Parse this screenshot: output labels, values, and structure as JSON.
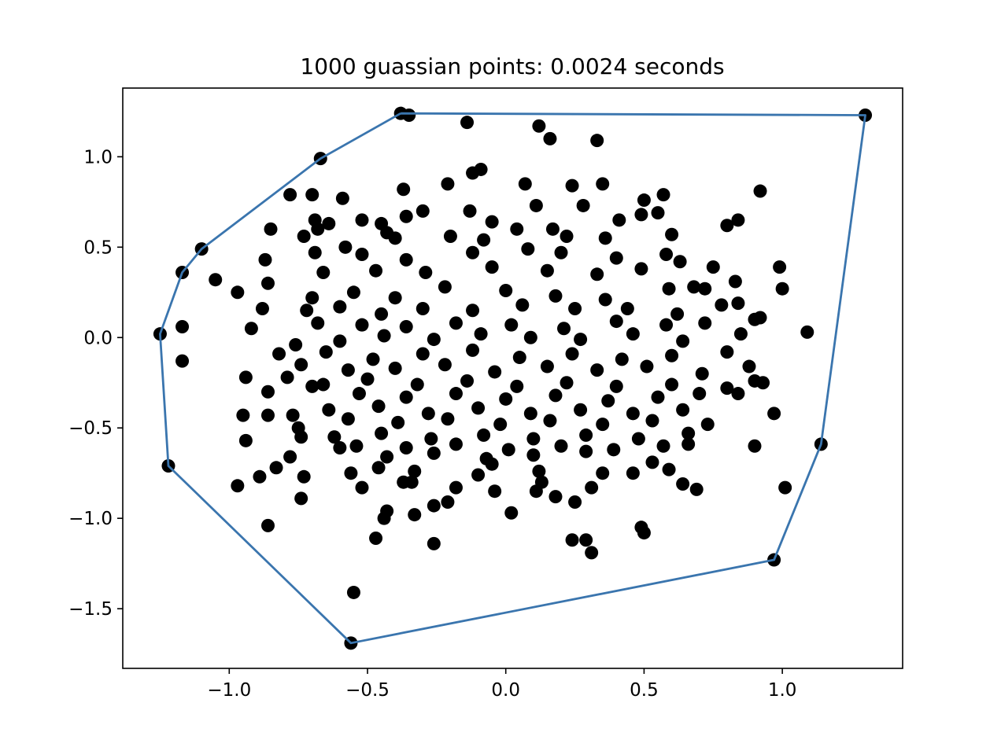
{
  "chart_data": {
    "type": "scatter",
    "title": "1000 guassian points: 0.0024 seconds",
    "xlabel": "",
    "ylabel": "",
    "xlim": [
      -1.385,
      1.435
    ],
    "ylim": [
      -1.83,
      1.38
    ],
    "xticks": [
      -1.0,
      -0.5,
      0.0,
      0.5,
      1.0
    ],
    "xtick_labels": [
      "−1.0",
      "−0.5",
      "0.0",
      "0.5",
      "1.0"
    ],
    "yticks": [
      -1.5,
      -1.0,
      -0.5,
      0.0,
      0.5,
      1.0
    ],
    "ytick_labels": [
      "−1.5",
      "−1.0",
      "−0.5",
      "0.0",
      "0.5",
      "1.0"
    ],
    "grid": false,
    "legend": "none",
    "point_color": "#000000",
    "hull_color": "#3a75ae",
    "points_total": 1000,
    "hull": [
      [
        -0.38,
        1.24
      ],
      [
        1.3,
        1.23
      ],
      [
        1.14,
        -0.59
      ],
      [
        0.97,
        -1.23
      ],
      [
        -0.56,
        -1.69
      ],
      [
        -1.22,
        -0.71
      ],
      [
        -1.25,
        0.02
      ],
      [
        -1.17,
        0.36
      ],
      [
        -1.1,
        0.49
      ],
      [
        -0.67,
        0.99
      ],
      [
        -0.38,
        1.24
      ]
    ],
    "points": [
      [
        -0.38,
        1.24
      ],
      [
        -0.35,
        1.23
      ],
      [
        -0.14,
        1.19
      ],
      [
        0.12,
        1.17
      ],
      [
        0.16,
        1.1
      ],
      [
        0.33,
        1.09
      ],
      [
        1.3,
        1.23
      ],
      [
        -0.67,
        0.99
      ],
      [
        -0.12,
        0.91
      ],
      [
        -0.09,
        0.93
      ],
      [
        0.92,
        0.81
      ],
      [
        -0.37,
        0.82
      ],
      [
        -0.21,
        0.85
      ],
      [
        0.35,
        0.85
      ],
      [
        0.24,
        0.84
      ],
      [
        0.07,
        0.85
      ],
      [
        -0.78,
        0.79
      ],
      [
        -0.7,
        0.79
      ],
      [
        -0.59,
        0.77
      ],
      [
        0.5,
        0.76
      ],
      [
        0.57,
        0.79
      ],
      [
        0.28,
        0.73
      ],
      [
        0.11,
        0.73
      ],
      [
        -0.13,
        0.7
      ],
      [
        -0.3,
        0.7
      ],
      [
        0.55,
        0.69
      ],
      [
        0.49,
        0.68
      ],
      [
        0.41,
        0.65
      ],
      [
        0.84,
        0.65
      ],
      [
        0.8,
        0.62
      ],
      [
        -0.69,
        0.65
      ],
      [
        -0.64,
        0.63
      ],
      [
        -0.85,
        0.6
      ],
      [
        -0.52,
        0.65
      ],
      [
        -0.45,
        0.63
      ],
      [
        -0.36,
        0.67
      ],
      [
        -0.43,
        0.58
      ],
      [
        -0.05,
        0.64
      ],
      [
        0.04,
        0.6
      ],
      [
        0.17,
        0.6
      ],
      [
        -0.73,
        0.56
      ],
      [
        -0.68,
        0.6
      ],
      [
        -0.58,
        0.5
      ],
      [
        -0.4,
        0.55
      ],
      [
        -0.2,
        0.56
      ],
      [
        -0.08,
        0.54
      ],
      [
        0.22,
        0.56
      ],
      [
        0.36,
        0.55
      ],
      [
        0.6,
        0.57
      ],
      [
        -1.1,
        0.49
      ],
      [
        -0.87,
        0.43
      ],
      [
        -0.69,
        0.47
      ],
      [
        -0.52,
        0.46
      ],
      [
        -0.36,
        0.43
      ],
      [
        -0.12,
        0.47
      ],
      [
        0.08,
        0.49
      ],
      [
        0.2,
        0.47
      ],
      [
        0.4,
        0.44
      ],
      [
        0.58,
        0.46
      ],
      [
        0.63,
        0.42
      ],
      [
        0.75,
        0.39
      ],
      [
        0.99,
        0.39
      ],
      [
        -1.17,
        0.36
      ],
      [
        -1.05,
        0.32
      ],
      [
        -0.66,
        0.36
      ],
      [
        -0.47,
        0.37
      ],
      [
        -0.29,
        0.36
      ],
      [
        -0.05,
        0.39
      ],
      [
        0.15,
        0.37
      ],
      [
        0.33,
        0.35
      ],
      [
        0.49,
        0.38
      ],
      [
        0.68,
        0.28
      ],
      [
        0.83,
        0.31
      ],
      [
        -0.97,
        0.25
      ],
      [
        -0.86,
        0.3
      ],
      [
        -0.7,
        0.22
      ],
      [
        -0.55,
        0.25
      ],
      [
        -0.4,
        0.22
      ],
      [
        -0.22,
        0.28
      ],
      [
        0.0,
        0.26
      ],
      [
        0.18,
        0.23
      ],
      [
        0.36,
        0.21
      ],
      [
        0.59,
        0.27
      ],
      [
        0.72,
        0.27
      ],
      [
        1.0,
        0.27
      ],
      [
        -0.88,
        0.16
      ],
      [
        -0.72,
        0.15
      ],
      [
        -0.6,
        0.17
      ],
      [
        -0.45,
        0.13
      ],
      [
        -0.3,
        0.16
      ],
      [
        -0.12,
        0.15
      ],
      [
        0.06,
        0.18
      ],
      [
        0.25,
        0.16
      ],
      [
        0.44,
        0.16
      ],
      [
        0.62,
        0.13
      ],
      [
        0.78,
        0.18
      ],
      [
        0.84,
        0.19
      ],
      [
        -0.68,
        0.08
      ],
      [
        -0.52,
        0.07
      ],
      [
        -0.36,
        0.06
      ],
      [
        -0.18,
        0.08
      ],
      [
        0.02,
        0.07
      ],
      [
        0.21,
        0.05
      ],
      [
        0.4,
        0.09
      ],
      [
        0.58,
        0.07
      ],
      [
        0.72,
        0.08
      ],
      [
        0.9,
        0.1
      ],
      [
        0.92,
        0.11
      ],
      [
        -1.25,
        0.02
      ],
      [
        -1.17,
        0.06
      ],
      [
        -0.92,
        0.05
      ],
      [
        -0.76,
        -0.04
      ],
      [
        -0.6,
        -0.02
      ],
      [
        -0.44,
        0.01
      ],
      [
        -0.26,
        -0.01
      ],
      [
        -0.09,
        0.02
      ],
      [
        0.09,
        0.0
      ],
      [
        0.27,
        -0.01
      ],
      [
        0.46,
        0.02
      ],
      [
        0.64,
        -0.02
      ],
      [
        0.85,
        0.02
      ],
      [
        1.09,
        0.03
      ],
      [
        -0.82,
        -0.09
      ],
      [
        -0.65,
        -0.08
      ],
      [
        -0.48,
        -0.12
      ],
      [
        -0.3,
        -0.09
      ],
      [
        -0.12,
        -0.07
      ],
      [
        0.05,
        -0.11
      ],
      [
        0.24,
        -0.09
      ],
      [
        0.42,
        -0.12
      ],
      [
        0.6,
        -0.1
      ],
      [
        0.8,
        -0.08
      ],
      [
        -1.17,
        -0.13
      ],
      [
        -0.74,
        -0.15
      ],
      [
        -0.57,
        -0.18
      ],
      [
        -0.4,
        -0.17
      ],
      [
        -0.22,
        -0.15
      ],
      [
        -0.04,
        -0.19
      ],
      [
        0.15,
        -0.16
      ],
      [
        0.33,
        -0.18
      ],
      [
        0.51,
        -0.16
      ],
      [
        0.71,
        -0.2
      ],
      [
        0.88,
        -0.16
      ],
      [
        -0.94,
        -0.22
      ],
      [
        -0.79,
        -0.22
      ],
      [
        -0.66,
        -0.26
      ],
      [
        -0.5,
        -0.23
      ],
      [
        -0.32,
        -0.26
      ],
      [
        -0.14,
        -0.24
      ],
      [
        0.04,
        -0.27
      ],
      [
        0.22,
        -0.25
      ],
      [
        0.4,
        -0.27
      ],
      [
        0.6,
        -0.26
      ],
      [
        0.8,
        -0.28
      ],
      [
        0.9,
        -0.24
      ],
      [
        0.93,
        -0.25
      ],
      [
        -0.86,
        -0.3
      ],
      [
        -0.7,
        -0.27
      ],
      [
        -0.53,
        -0.31
      ],
      [
        -0.36,
        -0.33
      ],
      [
        -0.18,
        -0.31
      ],
      [
        0.0,
        -0.34
      ],
      [
        0.18,
        -0.32
      ],
      [
        0.37,
        -0.35
      ],
      [
        0.55,
        -0.33
      ],
      [
        0.7,
        -0.31
      ],
      [
        0.84,
        -0.31
      ],
      [
        -0.64,
        -0.4
      ],
      [
        -0.46,
        -0.38
      ],
      [
        -0.28,
        -0.42
      ],
      [
        -0.1,
        -0.39
      ],
      [
        0.09,
        -0.42
      ],
      [
        0.27,
        -0.4
      ],
      [
        0.46,
        -0.42
      ],
      [
        0.64,
        -0.4
      ],
      [
        0.97,
        -0.42
      ],
      [
        -0.95,
        -0.43
      ],
      [
        -0.86,
        -0.43
      ],
      [
        -0.77,
        -0.43
      ],
      [
        -0.57,
        -0.45
      ],
      [
        -0.39,
        -0.47
      ],
      [
        -0.21,
        -0.45
      ],
      [
        -0.02,
        -0.48
      ],
      [
        0.16,
        -0.46
      ],
      [
        0.35,
        -0.48
      ],
      [
        0.53,
        -0.46
      ],
      [
        0.73,
        -0.48
      ],
      [
        -0.75,
        -0.5
      ],
      [
        -0.62,
        -0.55
      ],
      [
        -0.45,
        -0.53
      ],
      [
        -0.27,
        -0.56
      ],
      [
        -0.08,
        -0.54
      ],
      [
        0.1,
        -0.56
      ],
      [
        0.29,
        -0.54
      ],
      [
        0.48,
        -0.56
      ],
      [
        0.66,
        -0.53
      ],
      [
        -0.94,
        -0.57
      ],
      [
        -0.74,
        -0.55
      ],
      [
        -0.54,
        -0.6
      ],
      [
        -0.36,
        -0.61
      ],
      [
        -0.18,
        -0.59
      ],
      [
        0.01,
        -0.62
      ],
      [
        0.2,
        -0.6
      ],
      [
        0.39,
        -0.62
      ],
      [
        0.57,
        -0.6
      ],
      [
        0.66,
        -0.59
      ],
      [
        0.9,
        -0.6
      ],
      [
        1.14,
        -0.59
      ],
      [
        -0.78,
        -0.66
      ],
      [
        -0.6,
        -0.61
      ],
      [
        -0.43,
        -0.66
      ],
      [
        -0.26,
        -0.64
      ],
      [
        -0.07,
        -0.67
      ],
      [
        0.1,
        -0.65
      ],
      [
        0.29,
        -0.63
      ],
      [
        0.53,
        -0.69
      ],
      [
        -1.22,
        -0.71
      ],
      [
        -0.83,
        -0.72
      ],
      [
        -0.46,
        -0.72
      ],
      [
        -0.33,
        -0.74
      ],
      [
        -0.05,
        -0.7
      ],
      [
        0.12,
        -0.74
      ],
      [
        0.35,
        -0.75
      ],
      [
        0.59,
        -0.73
      ],
      [
        -0.97,
        -0.82
      ],
      [
        -0.89,
        -0.77
      ],
      [
        -0.73,
        -0.77
      ],
      [
        -0.56,
        -0.75
      ],
      [
        -0.37,
        -0.8
      ],
      [
        -0.1,
        -0.76
      ],
      [
        0.13,
        -0.8
      ],
      [
        0.46,
        -0.75
      ],
      [
        0.64,
        -0.81
      ],
      [
        -0.74,
        -0.89
      ],
      [
        -0.52,
        -0.83
      ],
      [
        -0.34,
        -0.8
      ],
      [
        -0.18,
        -0.83
      ],
      [
        -0.04,
        -0.85
      ],
      [
        0.11,
        -0.85
      ],
      [
        0.31,
        -0.83
      ],
      [
        0.69,
        -0.84
      ],
      [
        1.01,
        -0.83
      ],
      [
        -0.21,
        -0.91
      ],
      [
        -0.26,
        -0.93
      ],
      [
        0.18,
        -0.88
      ],
      [
        0.25,
        -0.91
      ],
      [
        -0.43,
        -0.96
      ],
      [
        -0.33,
        -0.98
      ],
      [
        0.02,
        -0.97
      ],
      [
        -0.86,
        -1.04
      ],
      [
        -0.44,
        -1.0
      ],
      [
        0.49,
        -1.05
      ],
      [
        0.5,
        -1.08
      ],
      [
        -0.47,
        -1.11
      ],
      [
        0.24,
        -1.12
      ],
      [
        0.29,
        -1.12
      ],
      [
        -0.26,
        -1.14
      ],
      [
        0.31,
        -1.19
      ],
      [
        0.97,
        -1.23
      ],
      [
        -0.55,
        -1.41
      ],
      [
        -0.56,
        -1.69
      ]
    ]
  }
}
